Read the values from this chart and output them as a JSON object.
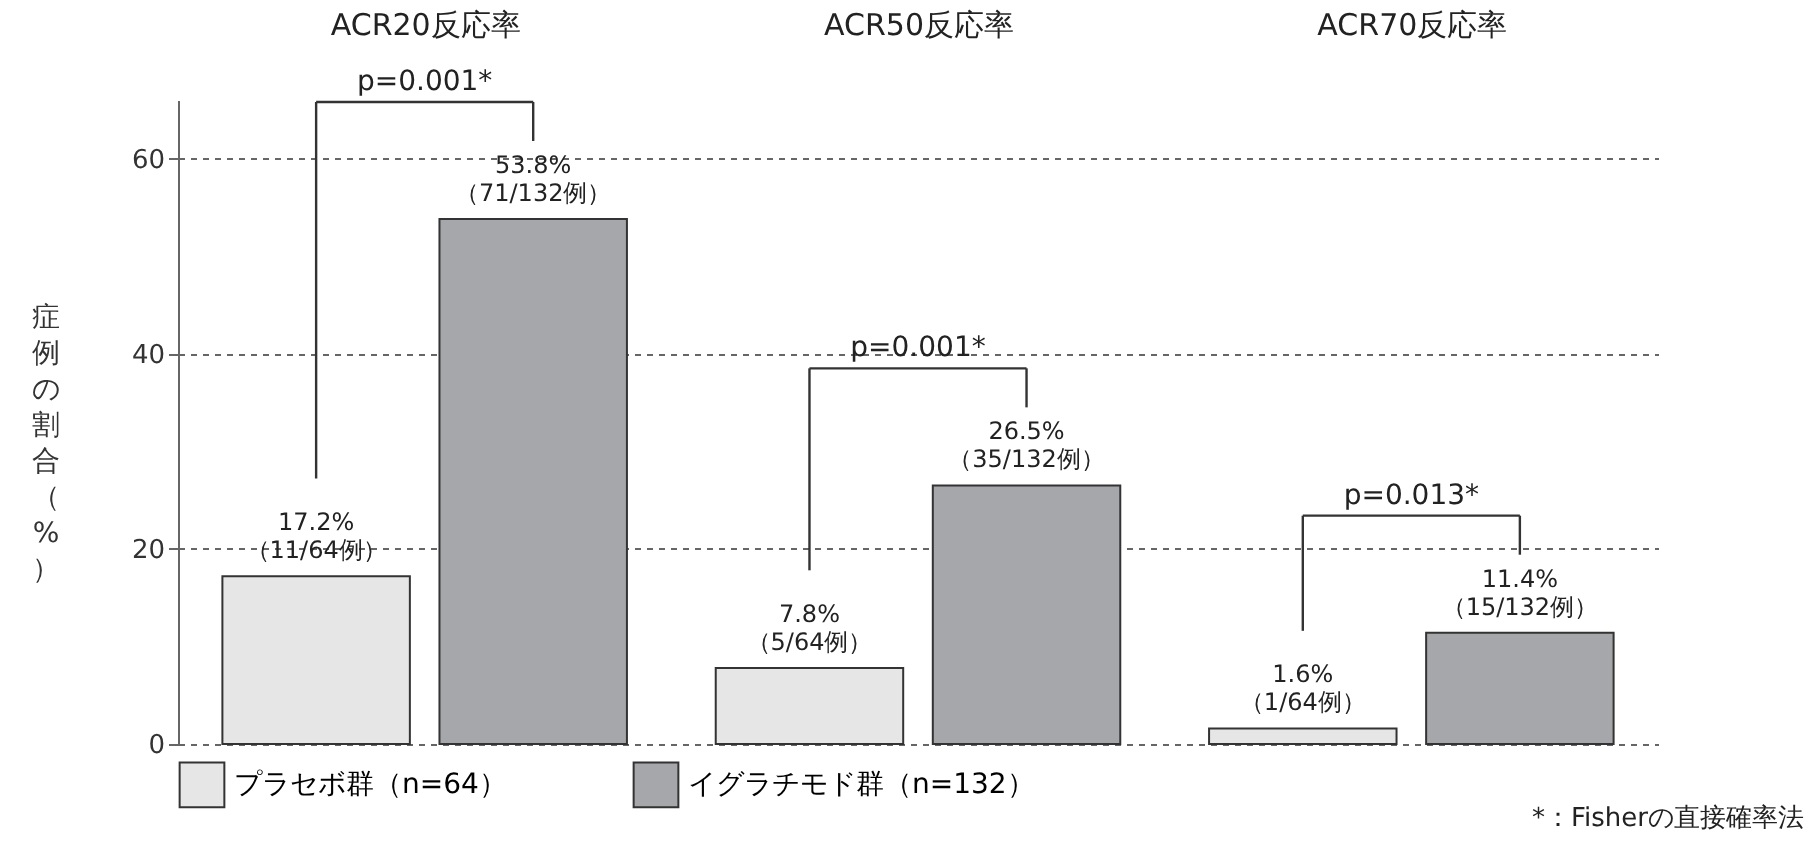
{
  "chart_data": {
    "type": "bar",
    "ylabel": "症例の割合（%）",
    "categories": [
      "ACR20反応率",
      "ACR50反応率",
      "ACR70反応率"
    ],
    "series": [
      {
        "name": "プラセボ群（n=64）",
        "color": "#e6e6e6",
        "values": [
          17.2,
          7.8,
          1.6
        ],
        "value_labels": [
          "17.2%\n（11/64例）",
          "7.8%\n（5/64例）",
          "1.6%\n（1/64例）"
        ]
      },
      {
        "name": "イグラチモド群（n=132）",
        "color": "#a6a7aa",
        "values": [
          53.8,
          26.5,
          11.4
        ],
        "value_labels": [
          "53.8%\n（71/132例）",
          "26.5%\n（35/132例）",
          "11.4%\n（15/132例）"
        ]
      }
    ],
    "ylim": [
      0,
      66
    ],
    "yticks": [
      0,
      20,
      40,
      60
    ],
    "grid": "y",
    "legend": "bottom",
    "annotations": [
      "p=0.001*",
      "p=0.001*",
      "p=0.013*",
      "*：Fisherの直接確率法"
    ]
  }
}
